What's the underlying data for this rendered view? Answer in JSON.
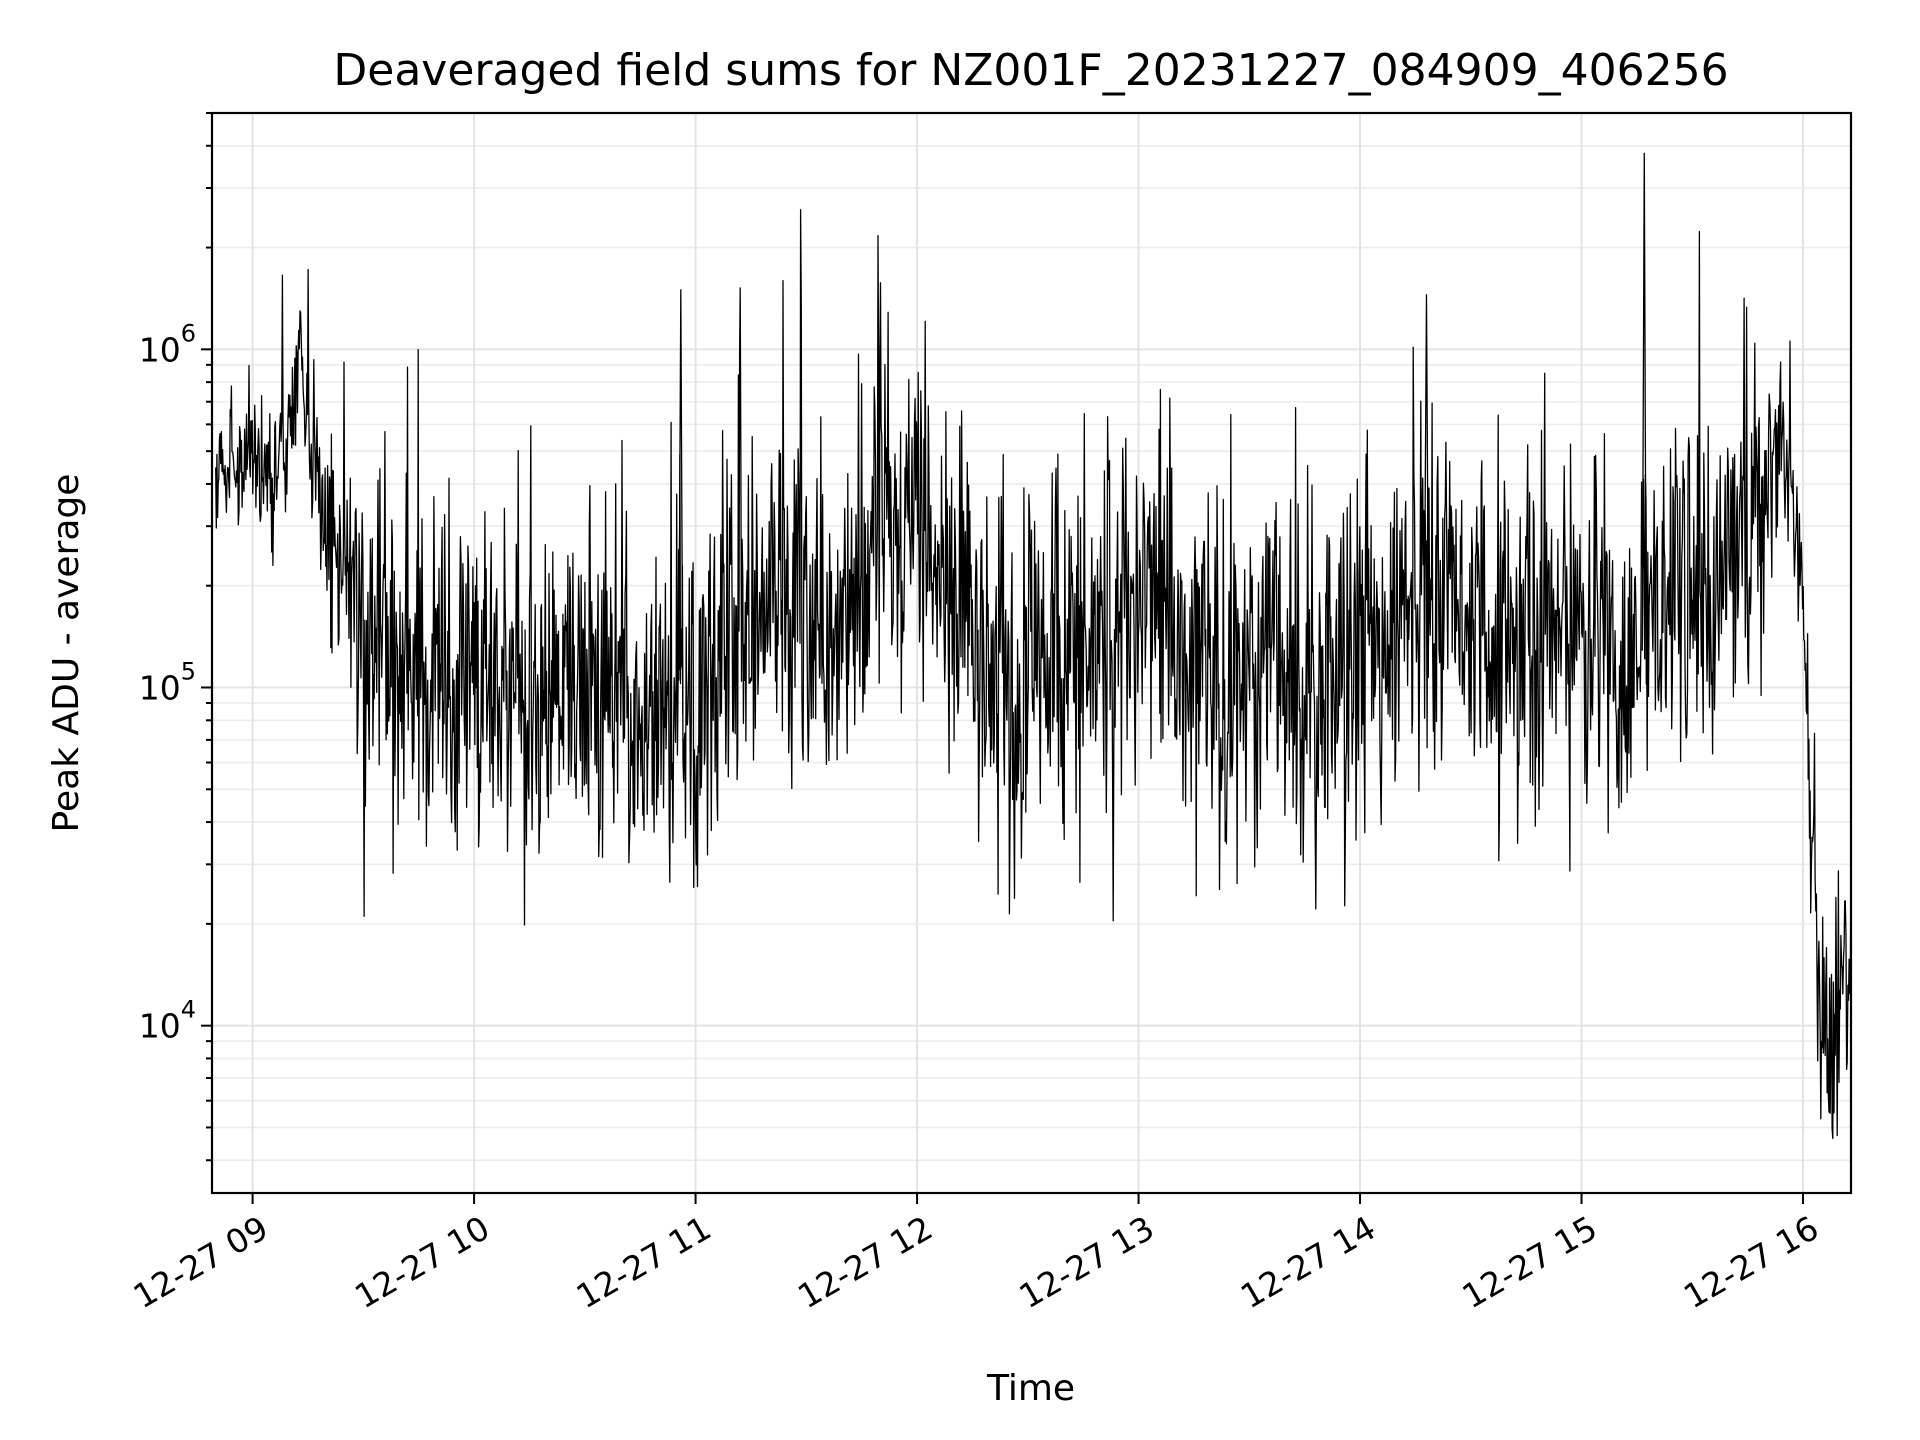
{
  "chart_data": {
    "type": "line",
    "title": "Deaveraged field sums for NZ001F_20231227_084909_406256",
    "xlabel": "Time",
    "ylabel": "Peak ADU - average",
    "yscale": "log",
    "grid": "on (major and minor)",
    "legend": "none",
    "line_color": "#000000",
    "xlim": [
      "2023-12-27 08:49",
      "2023-12-27 16:13"
    ],
    "ylim": [
      3200,
      5000000
    ],
    "x_ticks": [
      "12-27 09",
      "12-27 10",
      "12-27 11",
      "12-27 12",
      "12-27 13",
      "12-27 14",
      "12-27 15",
      "12-27 16"
    ],
    "y_ticks": [
      {
        "value": 10000,
        "base": "10",
        "exp": "4"
      },
      {
        "value": 100000,
        "base": "10",
        "exp": "5"
      },
      {
        "value": 1000000,
        "base": "10",
        "exp": "6"
      }
    ],
    "series": [
      {
        "x": [
          "2023-12-27 08:50",
          "2023-12-27 08:55",
          "2023-12-27 09:00",
          "2023-12-27 09:05",
          "2023-12-27 09:10",
          "2023-12-27 09:13",
          "2023-12-27 09:15",
          "2023-12-27 09:20",
          "2023-12-27 09:25",
          "2023-12-27 09:30",
          "2023-12-27 09:35",
          "2023-12-27 09:40",
          "2023-12-27 09:45",
          "2023-12-27 09:55",
          "2023-12-27 10:05",
          "2023-12-27 10:15",
          "2023-12-27 10:30",
          "2023-12-27 10:40",
          "2023-12-27 10:50",
          "2023-12-27 10:56",
          "2023-12-27 11:00",
          "2023-12-27 11:10",
          "2023-12-27 11:18",
          "2023-12-27 11:25",
          "2023-12-27 11:30",
          "2023-12-27 11:40",
          "2023-12-27 11:50",
          "2023-12-27 12:00",
          "2023-12-27 12:10",
          "2023-12-27 12:20",
          "2023-12-27 12:30",
          "2023-12-27 12:40",
          "2023-12-27 12:50",
          "2023-12-27 13:00",
          "2023-12-27 13:10",
          "2023-12-27 13:20",
          "2023-12-27 13:30",
          "2023-12-27 13:40",
          "2023-12-27 13:50",
          "2023-12-27 14:00",
          "2023-12-27 14:10",
          "2023-12-27 14:18",
          "2023-12-27 14:25",
          "2023-12-27 14:35",
          "2023-12-27 14:45",
          "2023-12-27 14:55",
          "2023-12-27 15:05",
          "2023-12-27 15:12",
          "2023-12-27 15:17",
          "2023-12-27 15:25",
          "2023-12-27 15:35",
          "2023-12-27 15:45",
          "2023-12-27 15:50",
          "2023-12-27 15:55",
          "2023-12-27 15:58",
          "2023-12-27 16:00",
          "2023-12-27 16:02",
          "2023-12-27 16:05",
          "2023-12-27 16:08",
          "2023-12-27 16:10",
          "2023-12-27 16:13"
        ],
        "y": [
          450000,
          500000,
          480000,
          450000,
          520000,
          1150000,
          600000,
          300000,
          250000,
          140000,
          110000,
          105000,
          115000,
          110000,
          100000,
          100000,
          95000,
          90000,
          110000,
          1500000,
          100000,
          140000,
          200000,
          250000,
          130000,
          180000,
          270000,
          250000,
          160000,
          110000,
          100000,
          150000,
          140000,
          180000,
          160000,
          110000,
          100000,
          120000,
          100000,
          110000,
          160000,
          1450000,
          180000,
          140000,
          130000,
          150000,
          140000,
          110000,
          3800000,
          150000,
          220000,
          260000,
          400000,
          500000,
          330000,
          170000,
          40000,
          12000,
          9000,
          11000,
          16000
        ],
        "variability": [
          0.18,
          0.18,
          0.18,
          0.2,
          0.2,
          0.2,
          0.22,
          0.28,
          0.35,
          0.45,
          0.45,
          0.45,
          0.45,
          0.45,
          0.45,
          0.45,
          0.45,
          0.45,
          0.45,
          0.45,
          0.45,
          0.45,
          0.45,
          0.45,
          0.45,
          0.45,
          0.45,
          0.45,
          0.45,
          0.45,
          0.45,
          0.45,
          0.45,
          0.45,
          0.45,
          0.45,
          0.45,
          0.45,
          0.45,
          0.45,
          0.45,
          0.45,
          0.45,
          0.45,
          0.45,
          0.45,
          0.45,
          0.45,
          0.45,
          0.45,
          0.45,
          0.4,
          0.3,
          0.2,
          0.15,
          0.15,
          0.25,
          0.4,
          0.4,
          0.4,
          0.35
        ]
      }
    ]
  }
}
